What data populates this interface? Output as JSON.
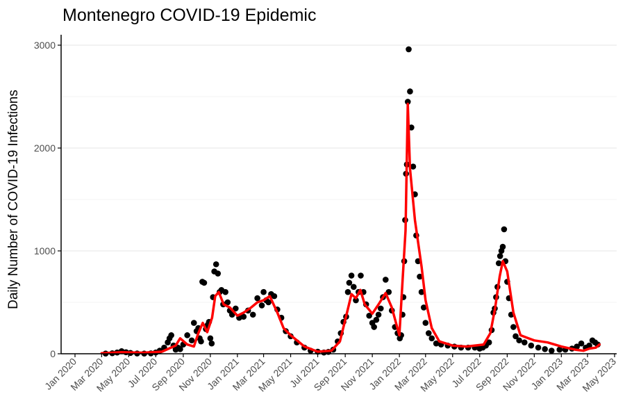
{
  "chart_data": {
    "type": "scatter",
    "title": "Montenegro COVID-19 Epidemic",
    "xlabel": "",
    "ylabel": "Daily Number of COVID-19 Infections",
    "ylim": [
      0,
      3000
    ],
    "xlim": [
      "2020-01-01",
      "2023-05-01"
    ],
    "y_ticks": [
      0,
      1000,
      2000,
      3000
    ],
    "x_ticks": [
      {
        "date": "2020-01-01",
        "label": "Jan 2020"
      },
      {
        "date": "2020-03-01",
        "label": "Mar 2020"
      },
      {
        "date": "2020-05-01",
        "label": "May 2020"
      },
      {
        "date": "2020-07-01",
        "label": "Jul 2020"
      },
      {
        "date": "2020-09-01",
        "label": "Sep 2020"
      },
      {
        "date": "2020-11-01",
        "label": "Nov 2020"
      },
      {
        "date": "2021-01-01",
        "label": "Jan 2021"
      },
      {
        "date": "2021-03-01",
        "label": "Mar 2021"
      },
      {
        "date": "2021-05-01",
        "label": "May 2021"
      },
      {
        "date": "2021-07-01",
        "label": "Jul 2021"
      },
      {
        "date": "2021-09-01",
        "label": "Sep 2021"
      },
      {
        "date": "2021-11-01",
        "label": "Nov 2021"
      },
      {
        "date": "2022-01-01",
        "label": "Jan 2022"
      },
      {
        "date": "2022-03-01",
        "label": "Mar 2022"
      },
      {
        "date": "2022-05-01",
        "label": "May 2022"
      },
      {
        "date": "2022-07-01",
        "label": "Jul 2022"
      },
      {
        "date": "2022-09-01",
        "label": "Sep 2022"
      },
      {
        "date": "2022-11-01",
        "label": "Nov 2022"
      },
      {
        "date": "2023-01-01",
        "label": "Jan 2023"
      },
      {
        "date": "2023-03-01",
        "label": "Mar 2023"
      },
      {
        "date": "2023-05-01",
        "label": "May 2023"
      }
    ],
    "grid": true,
    "colors": {
      "points": "#000000",
      "trend": "#ff0000",
      "grid": "#ebebeb",
      "axis": "#000000"
    },
    "series": [
      {
        "kind": "points",
        "x": [
          "2020-03-10",
          "2020-03-25",
          "2020-04-05",
          "2020-04-15",
          "2020-04-25",
          "2020-05-05",
          "2020-05-20",
          "2020-06-05",
          "2020-06-20",
          "2020-07-01",
          "2020-07-10",
          "2020-07-20",
          "2020-07-28",
          "2020-08-01",
          "2020-08-05",
          "2020-08-10",
          "2020-08-15",
          "2020-08-20",
          "2020-08-25",
          "2020-09-01",
          "2020-09-10",
          "2020-09-20",
          "2020-09-25",
          "2020-10-01",
          "2020-10-05",
          "2020-10-08",
          "2020-10-11",
          "2020-10-14",
          "2020-10-18",
          "2020-10-22",
          "2020-10-26",
          "2020-10-29",
          "2020-11-01",
          "2020-11-04",
          "2020-11-07",
          "2020-11-10",
          "2020-11-14",
          "2020-11-18",
          "2020-11-22",
          "2020-11-26",
          "2020-11-30",
          "2020-12-05",
          "2020-12-10",
          "2020-12-15",
          "2020-12-20",
          "2020-12-28",
          "2021-01-05",
          "2021-01-15",
          "2021-01-25",
          "2021-02-05",
          "2021-02-15",
          "2021-02-25",
          "2021-03-01",
          "2021-03-07",
          "2021-03-12",
          "2021-03-18",
          "2021-03-25",
          "2021-04-01",
          "2021-04-10",
          "2021-04-20",
          "2021-05-01",
          "2021-05-15",
          "2021-06-01",
          "2021-06-15",
          "2021-07-01",
          "2021-07-15",
          "2021-07-25",
          "2021-08-05",
          "2021-08-15",
          "2021-08-22",
          "2021-08-28",
          "2021-09-03",
          "2021-09-07",
          "2021-09-10",
          "2021-09-15",
          "2021-09-20",
          "2021-09-25",
          "2021-10-01",
          "2021-10-06",
          "2021-10-12",
          "2021-10-18",
          "2021-10-25",
          "2021-11-01",
          "2021-11-05",
          "2021-11-10",
          "2021-11-15",
          "2021-11-20",
          "2021-11-25",
          "2021-12-01",
          "2021-12-08",
          "2021-12-15",
          "2021-12-22",
          "2021-12-28",
          "2022-01-02",
          "2022-01-05",
          "2022-01-08",
          "2022-01-10",
          "2022-01-12",
          "2022-01-14",
          "2022-01-16",
          "2022-01-18",
          "2022-01-20",
          "2022-01-22",
          "2022-01-25",
          "2022-01-28",
          "2022-02-01",
          "2022-02-05",
          "2022-02-08",
          "2022-02-12",
          "2022-02-16",
          "2022-02-20",
          "2022-02-25",
          "2022-03-01",
          "2022-03-08",
          "2022-03-15",
          "2022-03-25",
          "2022-04-05",
          "2022-04-20",
          "2022-05-05",
          "2022-05-20",
          "2022-06-05",
          "2022-06-20",
          "2022-07-01",
          "2022-07-08",
          "2022-07-15",
          "2022-07-22",
          "2022-07-28",
          "2022-08-01",
          "2022-08-04",
          "2022-08-07",
          "2022-08-10",
          "2022-08-13",
          "2022-08-16",
          "2022-08-19",
          "2022-08-22",
          "2022-08-25",
          "2022-08-28",
          "2022-09-01",
          "2022-09-05",
          "2022-09-10",
          "2022-09-15",
          "2022-09-20",
          "2022-09-28",
          "2022-10-10",
          "2022-10-25",
          "2022-11-10",
          "2022-11-25",
          "2022-12-10",
          "2022-12-28",
          "2023-01-10",
          "2023-01-25",
          "2023-02-05",
          "2023-02-15",
          "2023-02-25",
          "2023-03-05",
          "2023-03-12",
          "2023-03-18",
          "2023-03-24"
        ],
        "y": [
          2,
          5,
          12,
          25,
          15,
          8,
          3,
          2,
          4,
          12,
          30,
          60,
          110,
          150,
          180,
          80,
          40,
          60,
          45,
          90,
          180,
          130,
          300,
          220,
          250,
          150,
          120,
          700,
          690,
          240,
          280,
          310,
          150,
          100,
          550,
          800,
          870,
          780,
          600,
          620,
          480,
          600,
          500,
          420,
          380,
          440,
          350,
          360,
          420,
          380,
          540,
          470,
          600,
          520,
          500,
          580,
          560,
          430,
          350,
          220,
          170,
          110,
          60,
          30,
          20,
          12,
          18,
          40,
          120,
          200,
          310,
          360,
          600,
          690,
          760,
          650,
          520,
          600,
          760,
          600,
          480,
          370,
          300,
          260,
          330,
          380,
          440,
          550,
          720,
          600,
          420,
          260,
          200,
          150,
          180,
          380,
          550,
          900,
          1300,
          1750,
          1840,
          2450,
          2960,
          2550,
          2200,
          1820,
          1550,
          1150,
          900,
          750,
          600,
          450,
          300,
          200,
          150,
          100,
          90,
          80,
          70,
          60,
          60,
          60,
          50,
          60,
          80,
          110,
          230,
          400,
          440,
          550,
          650,
          880,
          950,
          1000,
          1040,
          1210,
          900,
          700,
          540,
          380,
          260,
          170,
          130,
          110,
          80,
          60,
          45,
          30,
          40,
          40,
          50,
          70,
          100,
          60,
          80,
          130,
          110,
          90
        ]
      },
      {
        "kind": "trend",
        "x": [
          "2020-03-01",
          "2020-04-15",
          "2020-06-01",
          "2020-07-15",
          "2020-08-15",
          "2020-08-25",
          "2020-09-10",
          "2020-09-25",
          "2020-10-05",
          "2020-10-15",
          "2020-10-25",
          "2020-11-05",
          "2020-11-12",
          "2020-11-20",
          "2020-12-01",
          "2020-12-15",
          "2021-01-01",
          "2021-01-15",
          "2021-02-01",
          "2021-02-15",
          "2021-03-01",
          "2021-03-15",
          "2021-04-01",
          "2021-04-15",
          "2021-05-01",
          "2021-06-01",
          "2021-07-01",
          "2021-08-01",
          "2021-08-20",
          "2021-09-05",
          "2021-09-15",
          "2021-09-25",
          "2021-10-05",
          "2021-10-15",
          "2021-11-01",
          "2021-11-15",
          "2021-12-01",
          "2021-12-15",
          "2022-01-01",
          "2022-01-08",
          "2022-01-15",
          "2022-01-20",
          "2022-01-25",
          "2022-02-05",
          "2022-02-20",
          "2022-03-01",
          "2022-03-15",
          "2022-04-01",
          "2022-05-01",
          "2022-06-01",
          "2022-07-10",
          "2022-07-25",
          "2022-08-05",
          "2022-08-15",
          "2022-08-22",
          "2022-09-01",
          "2022-09-15",
          "2022-10-01",
          "2022-11-01",
          "2022-12-01",
          "2023-01-01",
          "2023-02-01",
          "2023-02-20",
          "2023-03-05",
          "2023-03-20",
          "2023-03-28"
        ],
        "y": [
          5,
          15,
          10,
          20,
          80,
          150,
          90,
          70,
          200,
          300,
          210,
          350,
          560,
          600,
          480,
          450,
          370,
          400,
          450,
          500,
          520,
          560,
          400,
          250,
          180,
          70,
          20,
          30,
          120,
          400,
          580,
          540,
          620,
          480,
          390,
          480,
          590,
          450,
          180,
          700,
          1200,
          2430,
          1800,
          1300,
          850,
          520,
          250,
          120,
          80,
          70,
          90,
          200,
          450,
          750,
          900,
          800,
          400,
          180,
          130,
          110,
          70,
          40,
          30,
          50,
          60,
          90
        ]
      }
    ]
  }
}
